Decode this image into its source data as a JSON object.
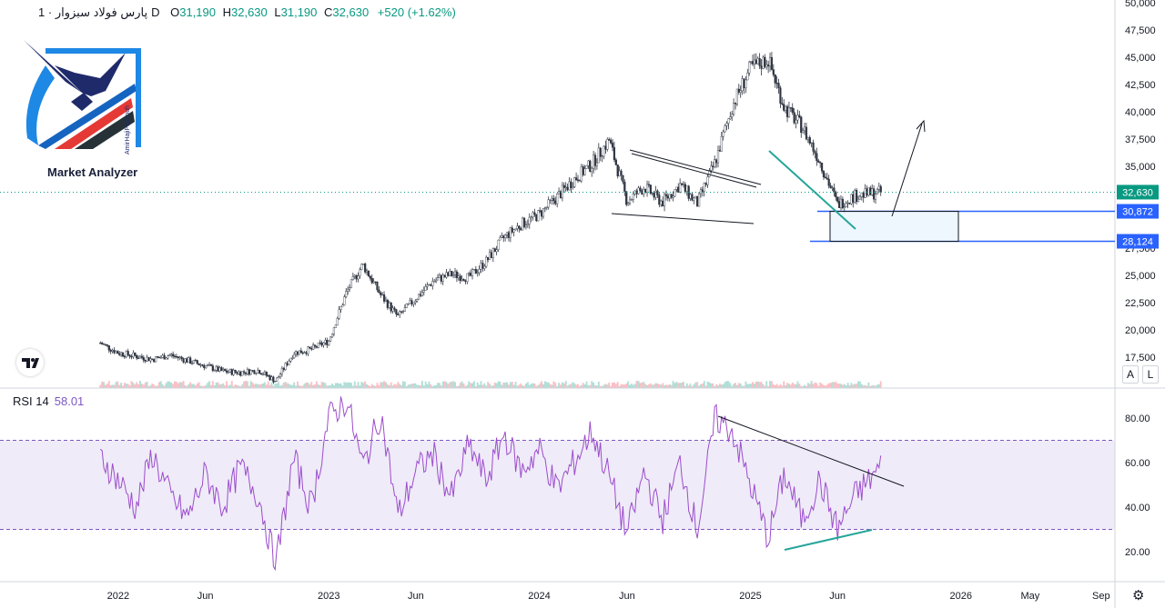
{
  "header": {
    "symbol_name": "پارس فولاد سبزوار",
    "interval": "1D",
    "open_label": "O",
    "open": "31,190",
    "high_label": "H",
    "high": "32,630",
    "low_label": "L",
    "low": "31,190",
    "close_label": "C",
    "close": "32,630",
    "change": "+520 (+1.62%)"
  },
  "logo": {
    "text": "Market Analyzer",
    "vertical_text": "AmirHajiPazhouh"
  },
  "rsi": {
    "label": "RSI 14",
    "value": "58.01"
  },
  "price_axis": {
    "ticks": [
      "50,000",
      "47,500",
      "45,000",
      "42,500",
      "40,000",
      "37,500",
      "35,000",
      "32,500",
      "27,500",
      "25,000",
      "22,500",
      "20,000",
      "17,500"
    ],
    "ymin": 15000,
    "ymax": 50000
  },
  "rsi_axis": {
    "ticks": [
      "80.00",
      "60.00",
      "40.00",
      "20.00"
    ],
    "upper_band": 70,
    "lower_band": 30
  },
  "price_labels": [
    {
      "text": "32,630",
      "value": 32630,
      "color": "#089981"
    },
    {
      "text": "30,872",
      "value": 30872,
      "color": "#2962ff"
    },
    {
      "text": "28,124",
      "value": 28124,
      "color": "#2962ff"
    }
  ],
  "time_axis": [
    "2022",
    "Jun",
    "2023",
    "Jun",
    "2024",
    "Jun",
    "2025",
    "Jun",
    "2026",
    "May",
    "Sep"
  ],
  "scale_buttons": [
    "A",
    "L"
  ],
  "colors": {
    "up": "#089981",
    "down": "#f23645",
    "rsi": "#9c4dcc",
    "band": "#7e57c2",
    "level": "#2962ff",
    "teal": "#26a69a"
  },
  "chart_data": {
    "type": "line",
    "title": "",
    "series": [
      {
        "points": [
          [
            "2021-12-01",
            18800
          ],
          [
            "2022-01-01",
            17900
          ],
          [
            "2022-02-01",
            17600
          ],
          [
            "2022-03-01",
            17300
          ],
          [
            "2022-04-01",
            17700
          ],
          [
            "2022-05-01",
            17200
          ],
          [
            "2022-06-01",
            16700
          ],
          [
            "2022-07-01",
            16200
          ],
          [
            "2022-08-01",
            16100
          ],
          [
            "2022-09-01",
            16300
          ],
          [
            "2022-10-01",
            15300
          ],
          [
            "2022-11-01",
            17900
          ],
          [
            "2022-12-01",
            18200
          ],
          [
            "2023-01-01",
            19000
          ],
          [
            "2023-02-01",
            23500
          ],
          [
            "2023-03-01",
            26000
          ],
          [
            "2023-04-01",
            23200
          ],
          [
            "2023-05-01",
            21200
          ],
          [
            "2023-06-01",
            22900
          ],
          [
            "2023-07-01",
            24500
          ],
          [
            "2023-08-01",
            25100
          ],
          [
            "2023-09-01",
            24800
          ],
          [
            "2023-10-01",
            26300
          ],
          [
            "2023-11-01",
            28500
          ],
          [
            "2023-12-01",
            29700
          ],
          [
            "2024-01-01",
            30600
          ],
          [
            "2024-02-01",
            32200
          ],
          [
            "2024-03-01",
            33800
          ],
          [
            "2024-04-01",
            35200
          ],
          [
            "2024-05-01",
            37400
          ],
          [
            "2024-06-01",
            31800
          ],
          [
            "2024-07-01",
            33100
          ],
          [
            "2024-08-01",
            31700
          ],
          [
            "2024-09-01",
            33300
          ],
          [
            "2024-10-01",
            31600
          ],
          [
            "2024-11-01",
            35400
          ],
          [
            "2024-12-01",
            40600
          ],
          [
            "2025-01-01",
            44000
          ],
          [
            "2025-02-01",
            44800
          ],
          [
            "2025-03-01",
            40400
          ],
          [
            "2025-04-01",
            38600
          ],
          [
            "2025-05-01",
            35500
          ],
          [
            "2025-06-01",
            31500
          ],
          [
            "2025-07-01",
            32300
          ],
          [
            "2025-08-15",
            32630
          ]
        ]
      }
    ],
    "rsi_series": [
      [
        "2021-12-01",
        63
      ],
      [
        "2022-01-01",
        52
      ],
      [
        "2022-02-01",
        40
      ],
      [
        "2022-03-01",
        64
      ],
      [
        "2022-04-01",
        45
      ],
      [
        "2022-05-01",
        35
      ],
      [
        "2022-06-01",
        55
      ],
      [
        "2022-07-01",
        40
      ],
      [
        "2022-08-01",
        58
      ],
      [
        "2022-09-01",
        45
      ],
      [
        "2022-10-01",
        14
      ],
      [
        "2022-11-01",
        62
      ],
      [
        "2022-12-01",
        40
      ],
      [
        "2023-01-01",
        80
      ],
      [
        "2023-02-01",
        88
      ],
      [
        "2023-03-01",
        58
      ],
      [
        "2023-04-01",
        82
      ],
      [
        "2023-05-01",
        36
      ],
      [
        "2023-06-01",
        56
      ],
      [
        "2023-07-01",
        64
      ],
      [
        "2023-08-01",
        44
      ],
      [
        "2023-09-01",
        68
      ],
      [
        "2023-10-01",
        52
      ],
      [
        "2023-11-01",
        73
      ],
      [
        "2023-12-01",
        56
      ],
      [
        "2024-01-01",
        66
      ],
      [
        "2024-02-01",
        48
      ],
      [
        "2024-03-01",
        60
      ],
      [
        "2024-04-01",
        74
      ],
      [
        "2024-05-01",
        54
      ],
      [
        "2024-06-01",
        28
      ],
      [
        "2024-07-01",
        56
      ],
      [
        "2024-08-01",
        34
      ],
      [
        "2024-09-01",
        60
      ],
      [
        "2024-10-01",
        30
      ],
      [
        "2024-11-01",
        80
      ],
      [
        "2024-12-01",
        74
      ],
      [
        "2025-01-01",
        50
      ],
      [
        "2025-02-01",
        26
      ],
      [
        "2025-03-01",
        55
      ],
      [
        "2025-04-01",
        34
      ],
      [
        "2025-05-01",
        52
      ],
      [
        "2025-06-01",
        30
      ],
      [
        "2025-07-01",
        45
      ],
      [
        "2025-08-15",
        58
      ]
    ],
    "ylim": [
      15000,
      50000
    ],
    "rsi_ylim": [
      10,
      92
    ],
    "horizontal_levels": [
      30872,
      28124
    ],
    "last_price": 32630,
    "grid": false,
    "volume": true
  }
}
